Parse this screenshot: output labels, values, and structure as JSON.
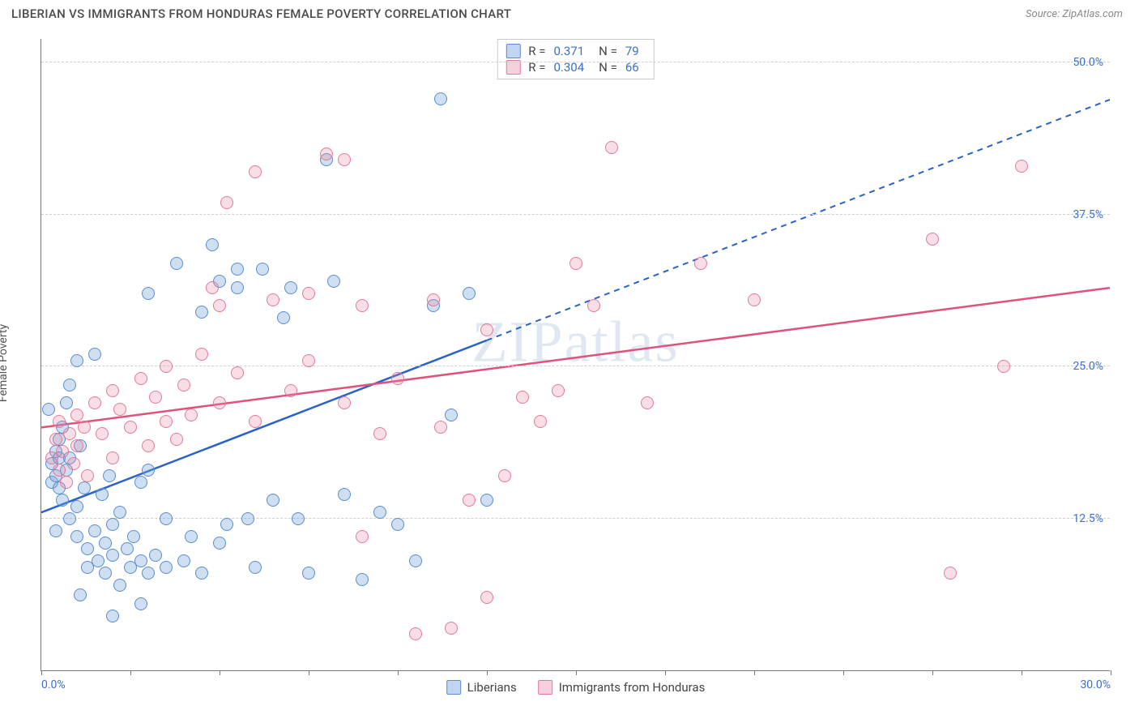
{
  "title": "LIBERIAN VS IMMIGRANTS FROM HONDURAS FEMALE POVERTY CORRELATION CHART",
  "source": "Source: ZipAtlas.com",
  "ylabel": "Female Poverty",
  "watermark": "ZIPatlas",
  "chart": {
    "type": "scatter",
    "xlim": [
      0,
      30
    ],
    "ylim": [
      0,
      52
    ],
    "yticks": [
      {
        "v": 12.5,
        "label": "12.5%"
      },
      {
        "v": 25.0,
        "label": "25.0%"
      },
      {
        "v": 37.5,
        "label": "37.5%"
      },
      {
        "v": 50.0,
        "label": "50.0%"
      }
    ],
    "xtick_step": 2.5,
    "xlabels": [
      {
        "v": 0,
        "label": "0.0%",
        "align": "left"
      },
      {
        "v": 30,
        "label": "30.0%",
        "align": "right"
      }
    ],
    "grid_color": "#d0d0d0",
    "background_color": "#ffffff",
    "axis_color": "#777777",
    "tick_label_color": "#3b6fc9",
    "series": [
      {
        "key": "a",
        "name": "Liberians",
        "fill": "rgba(116,162,219,0.35)",
        "stroke": "#5a8cd0",
        "r_value": "0.371",
        "n_value": "79",
        "trend": {
          "x1": 0,
          "y1": 13.0,
          "x2": 30,
          "y2": 47.0,
          "solid_until_x": 12.5,
          "color": "#2a62c9",
          "width": 2.5
        },
        "points": [
          [
            0.2,
            21.5
          ],
          [
            0.3,
            17.0
          ],
          [
            0.3,
            15.5
          ],
          [
            0.4,
            18.0
          ],
          [
            0.4,
            16.0
          ],
          [
            0.5,
            19.0
          ],
          [
            0.5,
            17.5
          ],
          [
            0.5,
            15.0
          ],
          [
            0.6,
            20.0
          ],
          [
            0.6,
            14.0
          ],
          [
            0.7,
            22.0
          ],
          [
            0.7,
            16.5
          ],
          [
            0.8,
            17.5
          ],
          [
            0.8,
            12.5
          ],
          [
            0.8,
            23.5
          ],
          [
            1.0,
            25.5
          ],
          [
            1.0,
            13.5
          ],
          [
            1.0,
            11.0
          ],
          [
            1.1,
            18.5
          ],
          [
            1.2,
            15.0
          ],
          [
            1.3,
            10.0
          ],
          [
            1.3,
            8.5
          ],
          [
            1.5,
            26.0
          ],
          [
            1.5,
            11.5
          ],
          [
            1.6,
            9.0
          ],
          [
            1.7,
            14.5
          ],
          [
            1.8,
            10.5
          ],
          [
            1.8,
            8.0
          ],
          [
            1.9,
            16.0
          ],
          [
            2.0,
            12.0
          ],
          [
            2.0,
            9.5
          ],
          [
            2.2,
            13.0
          ],
          [
            2.2,
            7.0
          ],
          [
            2.4,
            10.0
          ],
          [
            2.5,
            8.5
          ],
          [
            2.6,
            11.0
          ],
          [
            2.8,
            9.0
          ],
          [
            2.8,
            15.5
          ],
          [
            3.0,
            31.0
          ],
          [
            3.0,
            8.0
          ],
          [
            3.2,
            9.5
          ],
          [
            3.5,
            12.5
          ],
          [
            3.5,
            8.5
          ],
          [
            3.8,
            33.5
          ],
          [
            4.0,
            9.0
          ],
          [
            4.2,
            11.0
          ],
          [
            4.5,
            8.0
          ],
          [
            4.8,
            35.0
          ],
          [
            5.0,
            10.5
          ],
          [
            5.0,
            32.0
          ],
          [
            5.2,
            12.0
          ],
          [
            5.5,
            33.0
          ],
          [
            5.5,
            31.5
          ],
          [
            5.8,
            12.5
          ],
          [
            6.0,
            8.5
          ],
          [
            6.2,
            33.0
          ],
          [
            6.5,
            14.0
          ],
          [
            7.0,
            31.5
          ],
          [
            7.2,
            12.5
          ],
          [
            7.5,
            8.0
          ],
          [
            8.0,
            42.0
          ],
          [
            8.2,
            32.0
          ],
          [
            8.5,
            14.5
          ],
          [
            9.0,
            7.5
          ],
          [
            9.5,
            13.0
          ],
          [
            10.0,
            12.0
          ],
          [
            10.5,
            9.0
          ],
          [
            11.0,
            30.0
          ],
          [
            11.2,
            47.0
          ],
          [
            11.5,
            21.0
          ],
          [
            12.0,
            31.0
          ],
          [
            12.5,
            14.0
          ],
          [
            2.0,
            4.5
          ],
          [
            2.8,
            5.5
          ],
          [
            4.5,
            29.5
          ],
          [
            6.8,
            29.0
          ],
          [
            1.1,
            6.2
          ],
          [
            0.4,
            11.5
          ],
          [
            3.0,
            16.5
          ]
        ]
      },
      {
        "key": "b",
        "name": "Immigrants from Honduras",
        "fill": "rgba(233,138,163,0.28)",
        "stroke": "#e37997",
        "r_value": "0.304",
        "n_value": "66",
        "trend": {
          "x1": 0,
          "y1": 20.0,
          "x2": 30,
          "y2": 31.5,
          "solid_until_x": 30,
          "color": "#e0517b",
          "width": 2.5
        },
        "points": [
          [
            0.3,
            17.5
          ],
          [
            0.4,
            19.0
          ],
          [
            0.5,
            20.5
          ],
          [
            0.5,
            16.5
          ],
          [
            0.6,
            18.0
          ],
          [
            0.7,
            15.5
          ],
          [
            0.8,
            19.5
          ],
          [
            0.9,
            17.0
          ],
          [
            1.0,
            21.0
          ],
          [
            1.0,
            18.5
          ],
          [
            1.2,
            20.0
          ],
          [
            1.3,
            16.0
          ],
          [
            1.5,
            22.0
          ],
          [
            1.7,
            19.5
          ],
          [
            2.0,
            23.0
          ],
          [
            2.0,
            17.5
          ],
          [
            2.2,
            21.5
          ],
          [
            2.5,
            20.0
          ],
          [
            2.8,
            24.0
          ],
          [
            3.0,
            18.5
          ],
          [
            3.2,
            22.5
          ],
          [
            3.5,
            25.0
          ],
          [
            3.5,
            20.5
          ],
          [
            3.8,
            19.0
          ],
          [
            4.0,
            23.5
          ],
          [
            4.2,
            21.0
          ],
          [
            4.5,
            26.0
          ],
          [
            5.0,
            30.0
          ],
          [
            5.0,
            22.0
          ],
          [
            5.2,
            38.5
          ],
          [
            5.5,
            24.5
          ],
          [
            6.0,
            20.5
          ],
          [
            6.5,
            30.5
          ],
          [
            7.0,
            23.0
          ],
          [
            7.5,
            31.0
          ],
          [
            7.5,
            25.5
          ],
          [
            8.0,
            42.5
          ],
          [
            8.5,
            22.0
          ],
          [
            8.5,
            42.0
          ],
          [
            9.0,
            11.0
          ],
          [
            9.0,
            30.0
          ],
          [
            9.5,
            19.5
          ],
          [
            10.0,
            24.0
          ],
          [
            10.5,
            3.0
          ],
          [
            11.0,
            30.5
          ],
          [
            11.2,
            20.0
          ],
          [
            11.5,
            3.5
          ],
          [
            12.0,
            14.0
          ],
          [
            12.5,
            28.0
          ],
          [
            13.0,
            16.0
          ],
          [
            13.5,
            22.5
          ],
          [
            14.0,
            20.5
          ],
          [
            14.5,
            23.0
          ],
          [
            15.0,
            33.5
          ],
          [
            15.5,
            30.0
          ],
          [
            16.0,
            43.0
          ],
          [
            17.0,
            22.0
          ],
          [
            18.5,
            33.5
          ],
          [
            20.0,
            30.5
          ],
          [
            25.0,
            35.5
          ],
          [
            25.5,
            8.0
          ],
          [
            27.0,
            25.0
          ],
          [
            27.5,
            41.5
          ],
          [
            12.5,
            6.0
          ],
          [
            6.0,
            41.0
          ],
          [
            4.8,
            31.5
          ]
        ]
      }
    ]
  },
  "legend": {
    "a": "Liberians",
    "b": "Immigrants from Honduras"
  },
  "stat_labels": {
    "r": "R  =",
    "n": "N  ="
  }
}
